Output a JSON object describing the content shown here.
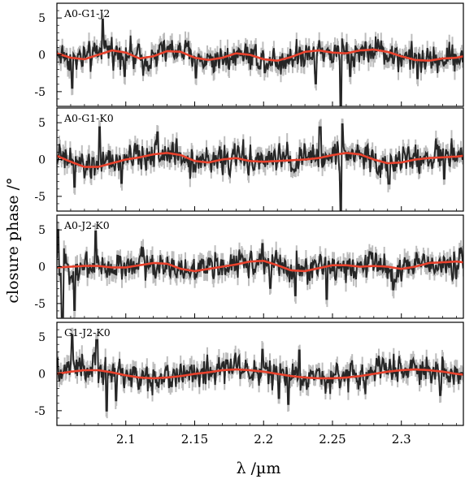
{
  "chart_data": {
    "type": "line",
    "xlabel": "λ /µm",
    "ylabel": "closure phase /°",
    "xlim": [
      2.05,
      2.345
    ],
    "ylim": [
      -7,
      7
    ],
    "x_ticks": [
      "2.1",
      "2.15",
      "2.2",
      "2.25",
      "2.3"
    ],
    "x_tick_values": [
      2.1,
      2.15,
      2.2,
      2.25,
      2.3
    ],
    "y_ticks": [
      "5",
      "0",
      "-5"
    ],
    "y_tick_values": [
      5,
      0,
      -5
    ],
    "colors": {
      "data": "#262626",
      "errorbars": "#bdbdbd",
      "model": "#e8412c"
    },
    "panels": [
      {
        "title": "A0-G1-J2",
        "model_x": [
          2.05,
          2.06,
          2.07,
          2.08,
          2.09,
          2.1,
          2.11,
          2.12,
          2.13,
          2.14,
          2.15,
          2.16,
          2.17,
          2.18,
          2.19,
          2.2,
          2.21,
          2.22,
          2.23,
          2.24,
          2.25,
          2.26,
          2.27,
          2.28,
          2.29,
          2.3,
          2.31,
          2.32,
          2.33,
          2.34,
          2.345
        ],
        "model_y": [
          0.2,
          -0.4,
          -0.6,
          0.0,
          0.6,
          0.3,
          -0.5,
          -0.2,
          0.5,
          0.4,
          -0.4,
          -0.7,
          -0.4,
          0.2,
          0.0,
          -0.6,
          -0.8,
          -0.3,
          0.4,
          0.6,
          0.3,
          0.2,
          0.6,
          0.7,
          0.4,
          -0.2,
          -0.7,
          -0.8,
          -0.5,
          -0.4,
          -0.2
        ],
        "spikes": [
          [
            2.061,
            -4.5
          ],
          [
            2.083,
            4.8
          ],
          [
            2.099,
            -2.9
          ],
          [
            2.151,
            -3.1
          ],
          [
            2.201,
            -2.4
          ],
          [
            2.238,
            -3.9
          ],
          [
            2.256,
            -8
          ],
          [
            2.263,
            -2.9
          ],
          [
            2.312,
            -3.2
          ]
        ]
      },
      {
        "title": "A0-G1-K0",
        "model_x": [
          2.05,
          2.06,
          2.07,
          2.08,
          2.09,
          2.1,
          2.11,
          2.12,
          2.13,
          2.14,
          2.15,
          2.16,
          2.17,
          2.18,
          2.19,
          2.2,
          2.21,
          2.22,
          2.23,
          2.24,
          2.25,
          2.26,
          2.27,
          2.28,
          2.29,
          2.3,
          2.31,
          2.32,
          2.33,
          2.34,
          2.345
        ],
        "model_y": [
          0.5,
          -0.3,
          -1.0,
          -1.0,
          -0.5,
          0.0,
          0.3,
          0.7,
          0.9,
          0.6,
          -0.2,
          -0.4,
          0.0,
          0.2,
          -0.2,
          -0.3,
          -0.2,
          -0.1,
          0.0,
          0.2,
          0.6,
          0.9,
          0.7,
          0.0,
          -0.5,
          -0.4,
          0.0,
          0.2,
          0.3,
          0.4,
          0.5
        ],
        "spikes": [
          [
            2.063,
            -3.7
          ],
          [
            2.081,
            4.4
          ],
          [
            2.097,
            -3.2
          ],
          [
            2.123,
            3.7
          ],
          [
            2.241,
            4.4
          ],
          [
            2.256,
            -7.3
          ],
          [
            2.257,
            4.8
          ],
          [
            2.291,
            -3.3
          ],
          [
            2.331,
            -2.6
          ]
        ]
      },
      {
        "title": "A0-J2-K0",
        "model_x": [
          2.05,
          2.06,
          2.07,
          2.08,
          2.09,
          2.1,
          2.11,
          2.12,
          2.13,
          2.14,
          2.15,
          2.16,
          2.17,
          2.18,
          2.19,
          2.2,
          2.21,
          2.22,
          2.23,
          2.24,
          2.25,
          2.26,
          2.27,
          2.28,
          2.29,
          2.3,
          2.31,
          2.32,
          2.33,
          2.34,
          2.345
        ],
        "model_y": [
          -0.1,
          0.0,
          0.1,
          0.1,
          -0.1,
          -0.1,
          0.2,
          0.5,
          0.4,
          -0.3,
          -0.6,
          -0.3,
          0.0,
          0.3,
          0.7,
          0.8,
          0.2,
          -0.5,
          -0.6,
          -0.2,
          0.2,
          0.2,
          0.0,
          0.1,
          0.0,
          -0.3,
          0.0,
          0.5,
          0.6,
          0.7,
          0.6
        ],
        "spikes": [
          [
            2.051,
            5.0
          ],
          [
            2.054,
            -6.8
          ],
          [
            2.063,
            -5.9
          ],
          [
            2.078,
            4.8
          ],
          [
            2.199,
            3.1
          ],
          [
            2.205,
            -2.9
          ],
          [
            2.223,
            -3.9
          ],
          [
            2.246,
            -4.4
          ],
          [
            2.294,
            -3.1
          ]
        ]
      },
      {
        "title": "G1-J2-K0",
        "model_x": [
          2.05,
          2.06,
          2.07,
          2.08,
          2.09,
          2.1,
          2.11,
          2.12,
          2.13,
          2.14,
          2.15,
          2.16,
          2.17,
          2.18,
          2.19,
          2.2,
          2.21,
          2.22,
          2.23,
          2.24,
          2.25,
          2.26,
          2.27,
          2.28,
          2.29,
          2.3,
          2.31,
          2.32,
          2.33,
          2.34,
          2.345
        ],
        "model_y": [
          0.0,
          0.3,
          0.5,
          0.5,
          0.2,
          -0.2,
          -0.5,
          -0.6,
          -0.5,
          -0.3,
          0.0,
          0.2,
          0.5,
          0.6,
          0.5,
          0.3,
          0.0,
          -0.3,
          -0.5,
          -0.6,
          -0.6,
          -0.5,
          -0.3,
          0.0,
          0.3,
          0.5,
          0.6,
          0.5,
          0.3,
          0.0,
          -0.1
        ],
        "spikes": [
          [
            2.061,
            5.3
          ],
          [
            2.079,
            4.6
          ],
          [
            2.086,
            -5.0
          ],
          [
            2.093,
            -3.6
          ],
          [
            2.199,
            3.3
          ],
          [
            2.211,
            -3.3
          ],
          [
            2.218,
            -4.1
          ],
          [
            2.226,
            3.2
          ],
          [
            2.328,
            -2.9
          ]
        ]
      }
    ]
  }
}
